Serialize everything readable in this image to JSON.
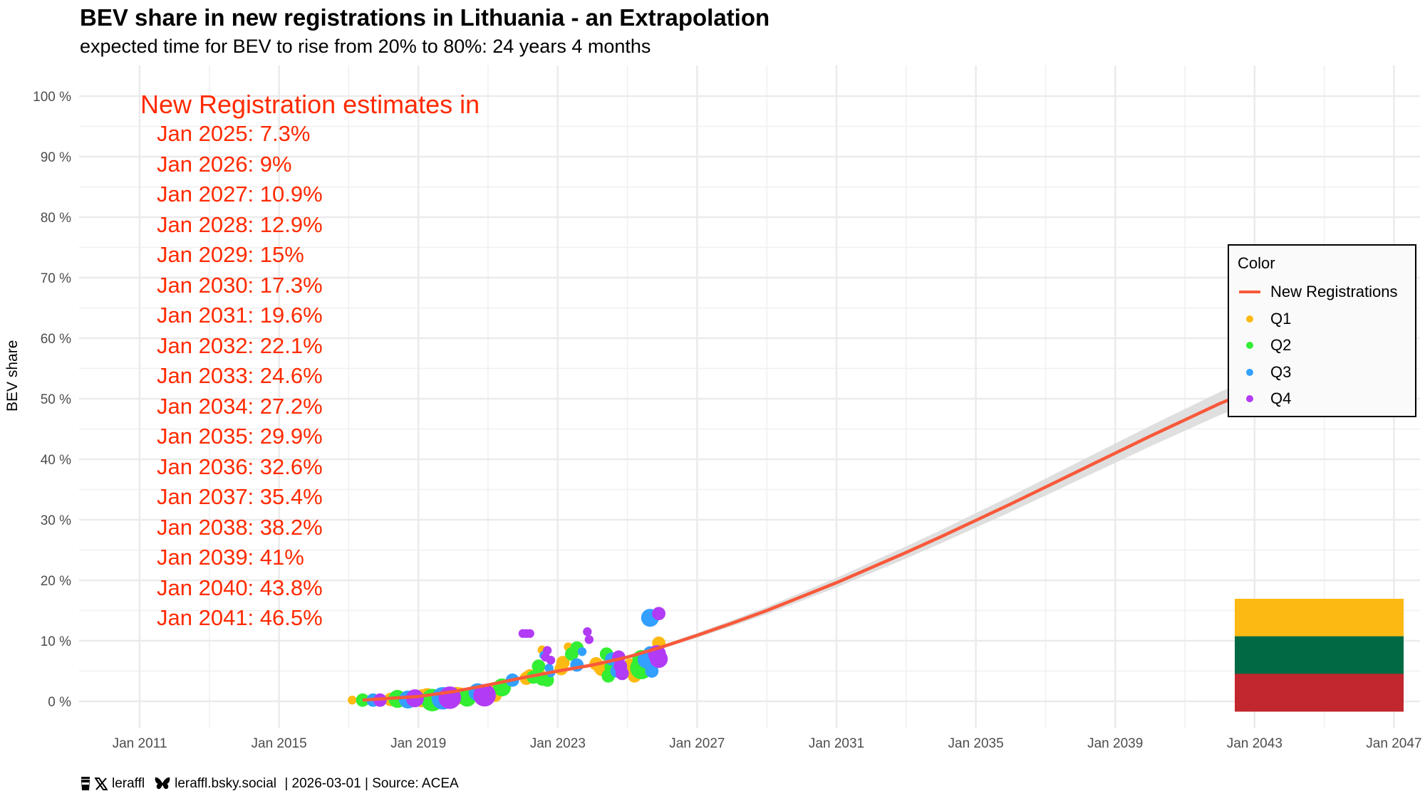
{
  "header": {
    "title": "BEV share in new registrations in Lithuania - an Extrapolation",
    "subtitle": "expected time for BEV to rise from 20% to 80%: 24 years 4 months"
  },
  "caption": {
    "icons": [
      "coffee-cup-icon",
      "x-logo-icon",
      "butterfly-icon"
    ],
    "x_handle": "leraffl",
    "bsky_handle": "leraffl.bsky.social",
    "rest": " | 2026-03-01 | Source: ACEA"
  },
  "annotation": {
    "heading": "New Registration estimates in",
    "lines": [
      "Jan 2025: 7.3%",
      "Jan 2026: 9%",
      "Jan 2027: 10.9%",
      "Jan 2028: 12.9%",
      "Jan 2029: 15%",
      "Jan 2030: 17.3%",
      "Jan 2031: 19.6%",
      "Jan 2032: 22.1%",
      "Jan 2033: 24.6%",
      "Jan 2034: 27.2%",
      "Jan 2035: 29.9%",
      "Jan 2036: 32.6%",
      "Jan 2037: 35.4%",
      "Jan 2038: 38.2%",
      "Jan 2039: 41%",
      "Jan 2040: 43.8%",
      "Jan 2041: 46.5%"
    ],
    "color": "#FF2A00"
  },
  "legend": {
    "title": "Color",
    "items": [
      {
        "label": "New Registrations",
        "type": "line",
        "color": "#F8593A"
      },
      {
        "label": "Q1",
        "type": "point",
        "color": "#FDBA12"
      },
      {
        "label": "Q2",
        "type": "point",
        "color": "#33EE33"
      },
      {
        "label": "Q3",
        "type": "point",
        "color": "#33A0FF"
      },
      {
        "label": "Q4",
        "type": "point",
        "color": "#B23BF5"
      }
    ]
  },
  "flag": {
    "country": "Lithuania",
    "stripes": [
      "#FDB913",
      "#006A44",
      "#C1272D"
    ]
  },
  "chart_data": {
    "type": "scatter",
    "title": "BEV share in new registrations in Lithuania - an Extrapolation",
    "subtitle": "expected time for BEV to rise from 20% to 80%: 24 years 4 months",
    "xlabel": "",
    "ylabel": "BEV share",
    "xlim": [
      2009.8,
      2047.8
    ],
    "ylim": [
      -2,
      102
    ],
    "x_ticks": [
      2011,
      2015,
      2019,
      2023,
      2027,
      2031,
      2035,
      2039,
      2043,
      2047
    ],
    "x_tick_labels": [
      "Jan 2011",
      "Jan 2015",
      "Jan 2019",
      "Jan 2023",
      "Jan 2027",
      "Jan 2031",
      "Jan 2035",
      "Jan 2039",
      "Jan 2043",
      "Jan 2047"
    ],
    "y_ticks": [
      0,
      10,
      20,
      30,
      40,
      50,
      60,
      70,
      80,
      90,
      100
    ],
    "y_tick_labels": [
      "0 %",
      "10 %",
      "20 %",
      "30 %",
      "40 %",
      "50 %",
      "60 %",
      "70 %",
      "80 %",
      "90 %",
      "100 %"
    ],
    "grid": true,
    "legend_position": "right",
    "fit_line": {
      "name": "New Registrations",
      "x": [
        2017.4,
        2019,
        2020,
        2021,
        2022,
        2023,
        2024,
        2025,
        2026,
        2027,
        2028,
        2029,
        2030,
        2031,
        2032,
        2033,
        2034,
        2035,
        2036,
        2037,
        2038,
        2039,
        2040,
        2041,
        2042,
        2042.6
      ],
      "y": [
        0.2,
        0.8,
        1.6,
        2.7,
        3.9,
        5.0,
        6.0,
        7.3,
        9.0,
        10.9,
        12.9,
        15.0,
        17.3,
        19.6,
        22.1,
        24.6,
        27.2,
        29.9,
        32.6,
        35.4,
        38.2,
        41.0,
        43.8,
        46.5,
        49.2,
        50.6
      ],
      "ci_halfwidth": [
        0.2,
        0.2,
        0.3,
        0.3,
        0.3,
        0.3,
        0.3,
        0.3,
        0.3,
        0.4,
        0.5,
        0.6,
        0.7,
        0.8,
        0.9,
        1.0,
        1.1,
        1.2,
        1.3,
        1.4,
        1.5,
        1.6,
        1.7,
        1.8,
        1.9,
        2.0
      ]
    },
    "series": [
      {
        "name": "Q1",
        "points": [
          [
            2017.1,
            0.2,
            1
          ],
          [
            2018.2,
            0.3,
            2
          ],
          [
            2019.1,
            0.5,
            3
          ],
          [
            2019.25,
            0.7,
            3
          ],
          [
            2020.1,
            0.9,
            3
          ],
          [
            2020.2,
            1.2,
            2
          ],
          [
            2021.1,
            1.5,
            3
          ],
          [
            2021.2,
            1.0,
            2
          ],
          [
            2022.1,
            3.8,
            2
          ],
          [
            2022.2,
            4.2,
            2
          ],
          [
            2022.45,
            4.5,
            2
          ],
          [
            2022.55,
            8.5,
            1
          ],
          [
            2023.1,
            5.4,
            2
          ],
          [
            2023.15,
            6.4,
            2
          ],
          [
            2023.3,
            9.0,
            1
          ],
          [
            2024.1,
            6.2,
            2
          ],
          [
            2024.2,
            5.7,
            2
          ],
          [
            2024.25,
            5.3,
            2
          ],
          [
            2025.1,
            5.6,
            3
          ],
          [
            2025.2,
            4.2,
            2
          ],
          [
            2025.3,
            6.5,
            2
          ],
          [
            2025.9,
            9.6,
            2
          ]
        ]
      },
      {
        "name": "Q2",
        "points": [
          [
            2017.4,
            0.2,
            2
          ],
          [
            2018.4,
            0.4,
            3
          ],
          [
            2019.4,
            0.2,
            4
          ],
          [
            2020.4,
            0.6,
            3
          ],
          [
            2021.4,
            2.3,
            3
          ],
          [
            2022.45,
            5.8,
            2
          ],
          [
            2022.55,
            3.7,
            2
          ],
          [
            2022.3,
            4.0,
            2
          ],
          [
            2022.7,
            3.5,
            2
          ],
          [
            2023.4,
            7.8,
            2
          ],
          [
            2023.5,
            8.5,
            1
          ],
          [
            2023.55,
            8.8,
            2
          ],
          [
            2024.4,
            7.8,
            2
          ],
          [
            2024.45,
            4.2,
            2
          ],
          [
            2024.6,
            5.7,
            3
          ],
          [
            2025.4,
            5.5,
            4
          ],
          [
            2025.45,
            6.3,
            3
          ],
          [
            2025.4,
            7.0,
            3
          ]
        ]
      },
      {
        "name": "Q3",
        "points": [
          [
            2017.7,
            0.2,
            2
          ],
          [
            2018.7,
            0.3,
            3
          ],
          [
            2019.7,
            0.5,
            4
          ],
          [
            2020.7,
            1.5,
            3
          ],
          [
            2021.7,
            3.5,
            2
          ],
          [
            2022.6,
            7.6,
            1
          ],
          [
            2022.75,
            5.5,
            1
          ],
          [
            2022.8,
            4.7,
            1
          ],
          [
            2023.55,
            6.0,
            2
          ],
          [
            2023.7,
            8.2,
            1
          ],
          [
            2024.55,
            7.0,
            2
          ],
          [
            2024.7,
            5.0,
            2
          ],
          [
            2025.55,
            6.9,
            3
          ],
          [
            2025.65,
            8.0,
            2
          ],
          [
            2025.7,
            5.0,
            2
          ],
          [
            2025.65,
            13.8,
            3
          ]
        ]
      },
      {
        "name": "Q4",
        "points": [
          [
            2017.9,
            0.2,
            2
          ],
          [
            2018.9,
            0.5,
            3
          ],
          [
            2019.9,
            0.6,
            4
          ],
          [
            2020.9,
            1.0,
            4
          ],
          [
            2022.0,
            11.2,
            1
          ],
          [
            2022.1,
            11.2,
            1
          ],
          [
            2022.2,
            11.2,
            1
          ],
          [
            2022.7,
            8.4,
            1
          ],
          [
            2022.65,
            7.3,
            1
          ],
          [
            2022.8,
            6.8,
            1
          ],
          [
            2023.85,
            11.5,
            1
          ],
          [
            2023.9,
            10.2,
            1
          ],
          [
            2024.75,
            7.3,
            2
          ],
          [
            2024.8,
            5.8,
            2
          ],
          [
            2024.85,
            4.6,
            2
          ],
          [
            2025.85,
            7.8,
            3
          ],
          [
            2025.9,
            7.0,
            3
          ],
          [
            2025.9,
            14.5,
            2
          ]
        ]
      }
    ],
    "annotation": "New Registration estimates in Jan 2025: 7.3% ... Jan 2041: 46.5%"
  }
}
